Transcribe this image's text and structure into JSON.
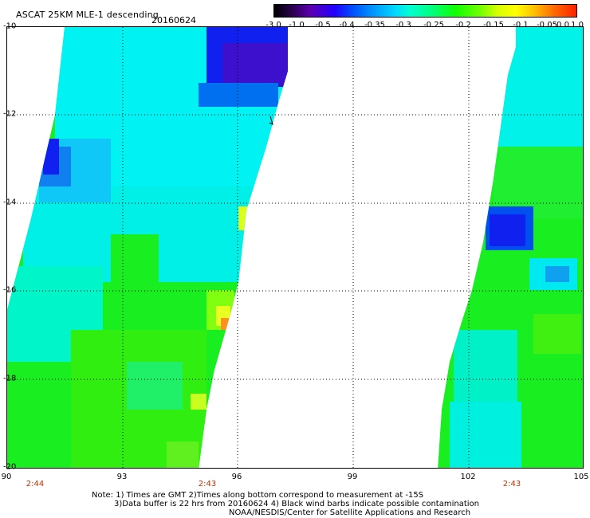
{
  "header": {
    "title": "ASCAT 25KM MLE-1 descending",
    "date": "20160624"
  },
  "colorbar": {
    "labels": [
      "-3.0",
      "-1.0",
      "-0.5",
      "-0.4",
      "-0.35",
      "-0.3",
      "-0.25",
      "-0.2",
      "-0.15",
      "-0.1",
      "-0.05",
      "0.0",
      "1.0"
    ]
  },
  "axes": {
    "lat_labels": [
      "-10",
      "-12",
      "-14",
      "-16",
      "-18",
      "-20"
    ],
    "lon_labels": [
      "90",
      "93",
      "96",
      "99",
      "102",
      "105"
    ],
    "time_labels": [
      "2:44",
      "2:43",
      "2:43"
    ]
  },
  "notes": {
    "line1": "Note: 1) Times are GMT 2)Times along bottom correspond to measurement at -15S",
    "line2": "3)Data buffer is 22 hrs from 20160624 4) Black wind barbs indicate possible contamination",
    "line3": "NOAA/NESDIS/Center for Satellite Applications and Research"
  },
  "colors": {
    "field_green": "#22ee22",
    "field_cyan": "#00f0f0",
    "field_blue": "#1020ee",
    "field_purple": "#3c10cc",
    "field_yellow": "#e8ff20",
    "field_orange": "#ff9020",
    "grid_dots": "#000000"
  }
}
